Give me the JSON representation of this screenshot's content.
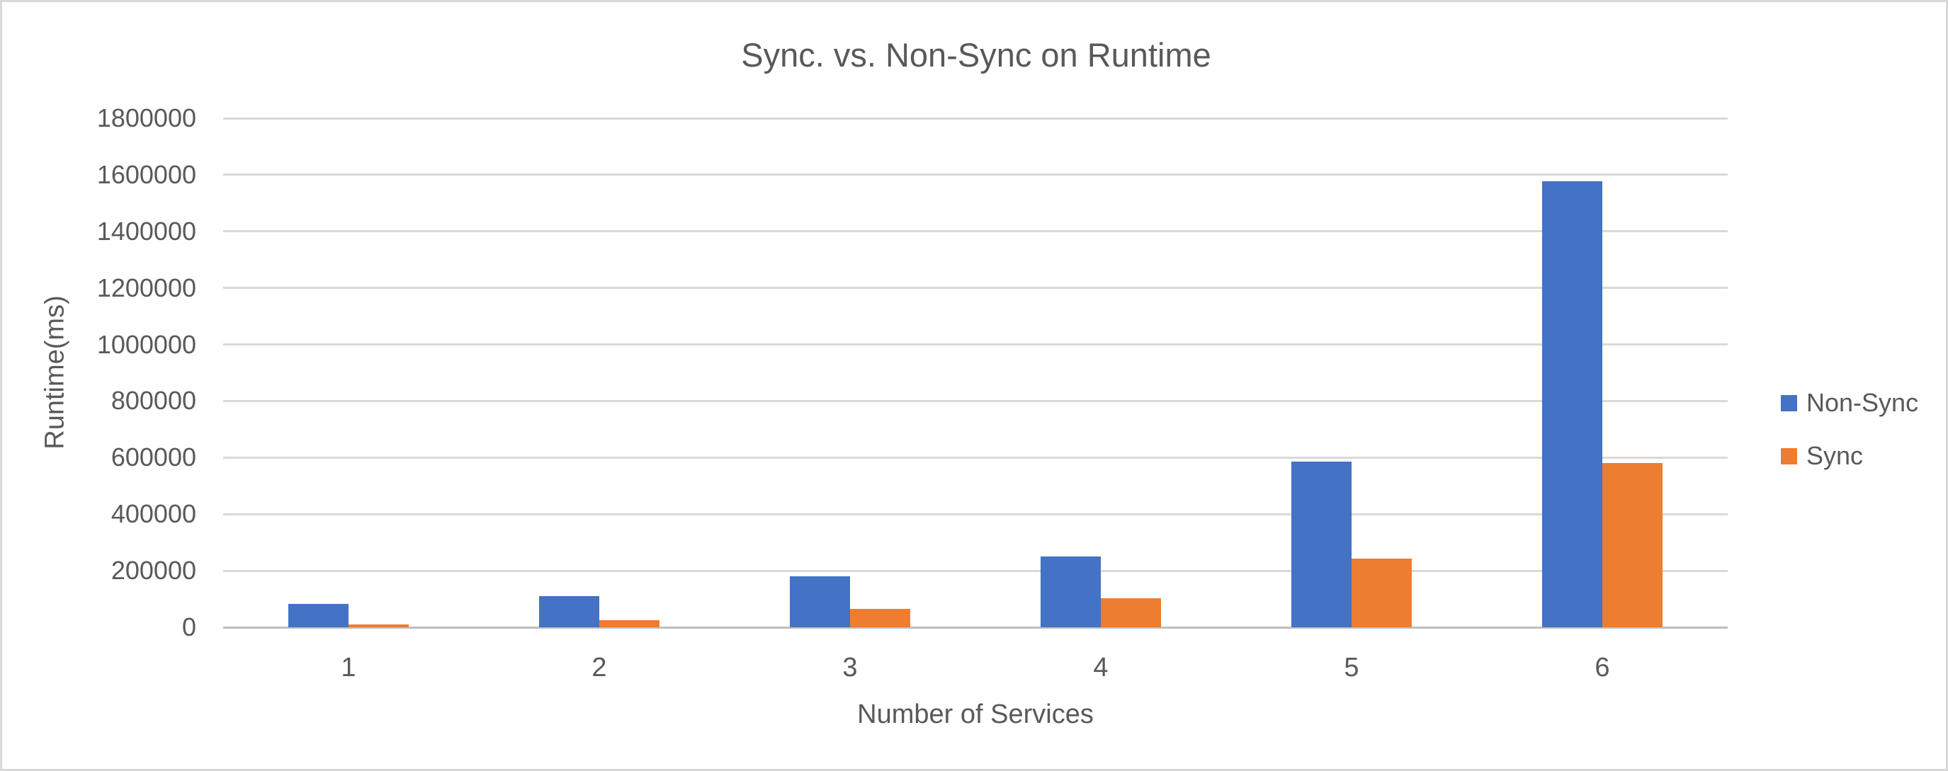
{
  "chart_data": {
    "type": "bar",
    "title": "Sync. vs. Non-Sync on Runtime",
    "xlabel": "Number of Services",
    "ylabel": "Runtime(ms)",
    "categories": [
      "1",
      "2",
      "3",
      "4",
      "5",
      "6"
    ],
    "series": [
      {
        "name": "Non-Sync",
        "color": "#4472C4",
        "values": [
          83000,
          110000,
          180000,
          250000,
          585000,
          1578000
        ]
      },
      {
        "name": "Sync",
        "color": "#ED7D31",
        "values": [
          11000,
          26000,
          64000,
          102000,
          242000,
          582000
        ]
      }
    ],
    "ylim": [
      0,
      1800000
    ],
    "y_tick_step": 200000,
    "y_tick_labels": [
      "0",
      "200000",
      "400000",
      "600000",
      "800000",
      "1000000",
      "1200000",
      "1400000",
      "1600000",
      "1800000"
    ],
    "grid": true,
    "legend_position": "right",
    "colors": {
      "background": "#FFFFFF",
      "border": "#D9D9D9",
      "gridline": "#D9D9D9",
      "axis_line": "#BFBFBF",
      "text": "#595959"
    }
  }
}
